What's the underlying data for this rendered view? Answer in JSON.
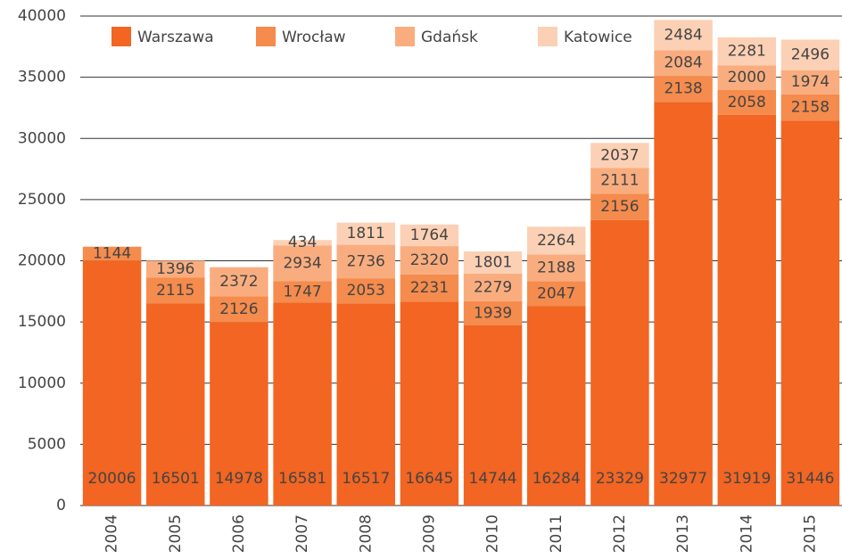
{
  "chart_data": {
    "type": "stacked_bar",
    "categories": [
      "2004",
      "2005",
      "2006",
      "2007",
      "2008",
      "2009",
      "2010",
      "2011",
      "2012",
      "2013",
      "2014",
      "2015"
    ],
    "series": [
      {
        "name": "Warszawa",
        "color": "#f26522",
        "values": [
          20006,
          16501,
          14978,
          16581,
          16517,
          16645,
          14744,
          16284,
          23329,
          32977,
          31919,
          31446
        ]
      },
      {
        "name": "Wrocław",
        "color": "#f58b4c",
        "values": [
          1144,
          2115,
          2126,
          1747,
          2053,
          2231,
          1939,
          2047,
          2156,
          2138,
          2058,
          2158
        ]
      },
      {
        "name": "Gdańsk",
        "color": "#f9ad7f",
        "values": [
          null,
          1396,
          2372,
          2934,
          2736,
          2320,
          2279,
          2188,
          2111,
          2084,
          2000,
          1974
        ]
      },
      {
        "name": "Katowice",
        "color": "#fcd0b4",
        "values": [
          null,
          null,
          null,
          434,
          1811,
          1764,
          1801,
          2264,
          2037,
          2484,
          2281,
          2496
        ]
      }
    ],
    "ylim": [
      0,
      40000
    ],
    "yticks": [
      0,
      5000,
      10000,
      15000,
      20000,
      25000,
      30000,
      35000,
      40000
    ],
    "grid": true,
    "legend": "top"
  }
}
